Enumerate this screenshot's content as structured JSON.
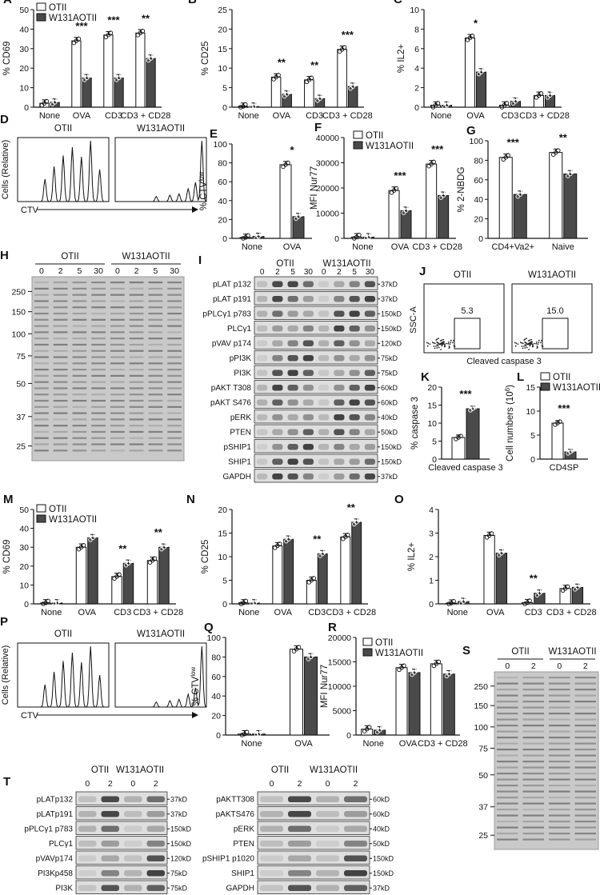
{
  "legend_wt": "OTII",
  "legend_mut": "W131AOTII",
  "conditions": [
    "None",
    "OVA",
    "CD3",
    "CD3 + CD28"
  ],
  "panels": {
    "A": {
      "label": "A",
      "ylabel": "% CD69",
      "ylim": [
        0,
        50
      ],
      "yticks": [
        0,
        10,
        20,
        30,
        40,
        50
      ],
      "stars": [
        "",
        "***",
        "***",
        "**"
      ]
    },
    "B": {
      "label": "B",
      "ylabel": "% CD25",
      "ylim": [
        0,
        25
      ],
      "yticks": [
        0,
        5,
        10,
        15,
        20,
        25
      ],
      "stars": [
        "",
        "**",
        "**",
        "***"
      ]
    },
    "C": {
      "label": "C",
      "ylabel": "% IL2+",
      "ylim": [
        0,
        10
      ],
      "yticks": [
        0,
        2,
        4,
        6,
        8,
        10
      ],
      "stars": [
        "",
        "*",
        "",
        ""
      ]
    },
    "D": {
      "label": "D",
      "col1": "OTII",
      "col2": "W131AOTII",
      "ylabel": "Cells (Relative)",
      "xlabel": "CTV"
    },
    "E": {
      "label": "E",
      "ylabel": "% CTV",
      "ylabel_sup": "low",
      "ylim": [
        0,
        100
      ],
      "yticks": [
        0,
        20,
        40,
        60,
        80,
        100
      ],
      "categories": [
        "None",
        "OVA"
      ],
      "stars": [
        "",
        "*"
      ]
    },
    "F": {
      "label": "F",
      "ylabel": "MFI Nur77",
      "ylim": [
        0,
        40000
      ],
      "yticks": [
        0,
        10000,
        20000,
        30000,
        40000
      ],
      "categories": [
        "None",
        "OVA",
        "CD3 + CD28"
      ],
      "stars": [
        "",
        "***",
        "***"
      ]
    },
    "G": {
      "label": "G",
      "ylabel": "% 2-NBDG",
      "ylim": [
        0,
        100
      ],
      "yticks": [
        0,
        20,
        40,
        60,
        80,
        100
      ],
      "categories": [
        "CD4+Va2+",
        "Naive"
      ],
      "stars": [
        "***",
        "**"
      ]
    },
    "H": {
      "label": "H",
      "group1": "OTII",
      "group2": "W131AOTII",
      "lanes": [
        "0",
        "2",
        "5",
        "30",
        "0",
        "2",
        "5",
        "30"
      ],
      "mw": [
        "250",
        "150",
        "100",
        "75",
        "50",
        "37",
        "25"
      ]
    },
    "I": {
      "label": "I",
      "group1": "OTII",
      "group2": "W131AOTII",
      "lanes": [
        "0",
        "2",
        "5",
        "30",
        "0",
        "2",
        "5",
        "30"
      ],
      "rows": [
        {
          "name": "pLAT p132",
          "mw": "37kD"
        },
        {
          "name": "pLAT p191",
          "mw": "37kD"
        },
        {
          "name": "pPLCγ1 p783",
          "mw": "150kD"
        },
        {
          "name": "PLCγ1",
          "mw": "150kD"
        },
        {
          "name": "pVAV p174",
          "mw": "120kD"
        },
        {
          "name": "pPI3K",
          "mw": "75kD"
        },
        {
          "name": "PI3K",
          "mw": "75kD"
        },
        {
          "name": "pAKT T308",
          "mw": "60kD"
        },
        {
          "name": "pAKT S476",
          "mw": "60kD"
        },
        {
          "name": "pERK",
          "mw": "40kD"
        },
        {
          "name": "PTEN",
          "mw": "50kD"
        },
        {
          "name": "pSHIP1",
          "mw": "150kD"
        },
        {
          "name": "SHIP1",
          "mw": "150kD"
        },
        {
          "name": "GAPDH",
          "mw": "37kD"
        }
      ]
    },
    "J": {
      "label": "J",
      "col1": "OTII",
      "col2": "W131AOTII",
      "ylabel": "SSC-A",
      "xlabel": "Cleaved caspase 3",
      "gate1": "5.3",
      "gate2": "15.0"
    },
    "K": {
      "label": "K",
      "ylabel": "% caspase 3",
      "ylim": [
        0,
        20
      ],
      "yticks": [
        0,
        5,
        10,
        15,
        20
      ],
      "categories": [
        "Cleaved caspase 3"
      ],
      "stars": [
        "***"
      ]
    },
    "L": {
      "label": "L",
      "ylabel": "Cell numbers (10",
      "ylabel_sup": "6",
      "ylabel_end": ")",
      "ylim": [
        0,
        15
      ],
      "yticks": [
        0,
        5,
        10,
        15
      ],
      "categories": [
        "CD4SP"
      ],
      "stars": [
        "***"
      ]
    },
    "M": {
      "label": "M",
      "ylabel": "% CD69",
      "ylim": [
        0,
        50
      ],
      "yticks": [
        0,
        10,
        20,
        30,
        40,
        50
      ],
      "stars": [
        "",
        "",
        "**",
        "**"
      ]
    },
    "N": {
      "label": "N",
      "ylabel": "% CD25",
      "ylim": [
        0,
        20
      ],
      "yticks": [
        0,
        5,
        10,
        15,
        20
      ],
      "stars": [
        "",
        "",
        "**",
        "**"
      ]
    },
    "O": {
      "label": "O",
      "ylabel": "% IL2+",
      "ylim": [
        0,
        4
      ],
      "yticks": [
        0,
        1,
        2,
        3,
        4
      ],
      "stars": [
        "",
        "",
        "**",
        ""
      ]
    },
    "P": {
      "label": "P",
      "col1": "OTII",
      "col2": "W131AOTII",
      "ylabel": "Cells (Relative)",
      "xlabel": "CTV"
    },
    "Q": {
      "label": "Q",
      "ylabel": "% CTV",
      "ylabel_sup": "low",
      "ylim": [
        0,
        100
      ],
      "yticks": [
        0,
        20,
        40,
        60,
        80,
        100
      ],
      "categories": [
        "None",
        "OVA"
      ],
      "stars": [
        "",
        ""
      ]
    },
    "R": {
      "label": "R",
      "ylabel": "MFI Nur77",
      "ylim": [
        0,
        20000
      ],
      "yticks": [
        0,
        5000,
        10000,
        15000,
        20000
      ],
      "categories": [
        "None",
        "OVA",
        "CD3 + CD28"
      ],
      "stars": [
        "",
        "",
        ""
      ]
    },
    "S": {
      "label": "S",
      "group1": "OTII",
      "group2": "W131AOTII",
      "lanes": [
        "0",
        "2",
        "0",
        "2"
      ],
      "mw": [
        "250",
        "150",
        "100",
        "75",
        "50",
        "37",
        "25"
      ]
    },
    "T": {
      "label": "T",
      "group1": "OTII",
      "group2": "W131AOTII",
      "lanes": [
        "0",
        "2",
        "0",
        "2"
      ],
      "left_rows": [
        {
          "name": "pLATp132",
          "mw": "37kD"
        },
        {
          "name": "pLATp191",
          "mw": "37kD"
        },
        {
          "name": "pPLCγ1 p783",
          "mw": "150kD"
        },
        {
          "name": "PLCγ1",
          "mw": "150kD"
        },
        {
          "name": "pVAVp174",
          "mw": "120kD"
        },
        {
          "name": "PI3Kp458",
          "mw": "75kD"
        },
        {
          "name": "PI3K",
          "mw": "75kD"
        }
      ],
      "right_rows": [
        {
          "name": "pAKTT308",
          "mw": "60kD"
        },
        {
          "name": "pAKTS476",
          "mw": "60kD"
        },
        {
          "name": "pERK",
          "mw": "40kD"
        },
        {
          "name": "PTEN",
          "mw": "50kD"
        },
        {
          "name": "pSHIP1 p1020",
          "mw": "150kD"
        },
        {
          "name": "SHIP1",
          "mw": "150kD"
        },
        {
          "name": "GAPDH",
          "mw": "37kD"
        }
      ]
    }
  },
  "chart_data": [
    {
      "id": "A",
      "type": "bar",
      "categories": [
        "None",
        "OVA",
        "CD3",
        "CD3 + CD28"
      ],
      "series": [
        {
          "name": "OTII",
          "values": [
            2,
            34,
            37,
            38
          ]
        },
        {
          "name": "W131AOTII",
          "values": [
            2.5,
            15,
            15,
            25
          ]
        }
      ],
      "ylabel": "% CD69",
      "ylim": [
        0,
        50
      ]
    },
    {
      "id": "B",
      "type": "bar",
      "categories": [
        "None",
        "OVA",
        "CD3",
        "CD3 + CD28"
      ],
      "series": [
        {
          "name": "OTII",
          "values": [
            0.2,
            7.7,
            7.0,
            14.8
          ]
        },
        {
          "name": "W131AOTII",
          "values": [
            0.2,
            3.3,
            2.2,
            5.3
          ]
        }
      ],
      "ylabel": "% CD25",
      "ylim": [
        0,
        25
      ]
    },
    {
      "id": "C",
      "type": "bar",
      "categories": [
        "None",
        "OVA",
        "CD3",
        "CD3 + CD28"
      ],
      "series": [
        {
          "name": "OTII",
          "values": [
            0.2,
            7.1,
            0.2,
            1.2
          ]
        },
        {
          "name": "W131AOTII",
          "values": [
            0.2,
            3.6,
            0.6,
            1.2
          ]
        }
      ],
      "ylabel": "% IL2+",
      "ylim": [
        0,
        10
      ]
    },
    {
      "id": "E",
      "type": "bar",
      "categories": [
        "None",
        "OVA"
      ],
      "series": [
        {
          "name": "OTII",
          "values": [
            1,
            78
          ]
        },
        {
          "name": "W131AOTII",
          "values": [
            2,
            23
          ]
        }
      ],
      "ylabel": "% CTVlow",
      "ylim": [
        0,
        100
      ]
    },
    {
      "id": "F",
      "type": "bar",
      "categories": [
        "None",
        "OVA",
        "CD3 + CD28"
      ],
      "series": [
        {
          "name": "OTII",
          "values": [
            500,
            19000,
            29500
          ]
        },
        {
          "name": "W131AOTII",
          "values": [
            500,
            11000,
            17000
          ]
        }
      ],
      "ylabel": "MFI Nur77",
      "ylim": [
        0,
        40000
      ]
    },
    {
      "id": "G",
      "type": "bar",
      "categories": [
        "CD4+Va2+",
        "Naive"
      ],
      "series": [
        {
          "name": "OTII",
          "values": [
            83,
            88
          ]
        },
        {
          "name": "W131AOTII",
          "values": [
            45,
            66
          ]
        }
      ],
      "ylabel": "% 2-NBDG",
      "ylim": [
        0,
        100
      ]
    },
    {
      "id": "K",
      "type": "bar",
      "categories": [
        "Cleaved caspase 3"
      ],
      "series": [
        {
          "name": "OTII",
          "values": [
            6
          ]
        },
        {
          "name": "W131AOTII",
          "values": [
            14
          ]
        }
      ],
      "ylabel": "% caspase 3",
      "ylim": [
        0,
        20
      ]
    },
    {
      "id": "L",
      "type": "bar",
      "categories": [
        "CD4SP"
      ],
      "series": [
        {
          "name": "OTII",
          "values": [
            7.5
          ]
        },
        {
          "name": "W131AOTII",
          "values": [
            1.5
          ]
        }
      ],
      "ylabel": "Cell numbers (10^6)",
      "ylim": [
        0,
        15
      ]
    },
    {
      "id": "M",
      "type": "bar",
      "categories": [
        "None",
        "OVA",
        "CD3",
        "CD3 + CD28"
      ],
      "series": [
        {
          "name": "OTII",
          "values": [
            0.5,
            30,
            14.5,
            23
          ]
        },
        {
          "name": "W131AOTII",
          "values": [
            0.5,
            35,
            21.5,
            30
          ]
        }
      ],
      "ylabel": "% CD69",
      "ylim": [
        0,
        50
      ]
    },
    {
      "id": "N",
      "type": "bar",
      "categories": [
        "None",
        "OVA",
        "CD3",
        "CD3 + CD28"
      ],
      "series": [
        {
          "name": "OTII",
          "values": [
            0.2,
            12.3,
            5,
            14.2
          ]
        },
        {
          "name": "W131AOTII",
          "values": [
            0.2,
            13.7,
            10.6,
            17.3
          ]
        }
      ],
      "ylabel": "% CD25",
      "ylim": [
        0,
        20
      ]
    },
    {
      "id": "O",
      "type": "bar",
      "categories": [
        "None",
        "OVA",
        "CD3",
        "CD3 + CD28"
      ],
      "series": [
        {
          "name": "OTII",
          "values": [
            0.03,
            2.9,
            0.05,
            0.65
          ]
        },
        {
          "name": "W131AOTII",
          "values": [
            0.1,
            2.15,
            0.45,
            0.7
          ]
        }
      ],
      "ylabel": "% IL2+",
      "ylim": [
        0,
        4
      ]
    },
    {
      "id": "Q",
      "type": "bar",
      "categories": [
        "None",
        "OVA"
      ],
      "series": [
        {
          "name": "OTII",
          "values": [
            1,
            88
          ]
        },
        {
          "name": "W131AOTII",
          "values": [
            1,
            80
          ]
        }
      ],
      "ylabel": "% CTVlow",
      "ylim": [
        0,
        100
      ]
    },
    {
      "id": "R",
      "type": "bar",
      "categories": [
        "None",
        "OVA",
        "CD3 + CD28"
      ],
      "series": [
        {
          "name": "OTII",
          "values": [
            1200,
            13800,
            14600
          ]
        },
        {
          "name": "W131AOTII",
          "values": [
            1000,
            12800,
            12500
          ]
        }
      ],
      "ylabel": "MFI Nur77",
      "ylim": [
        0,
        20000
      ]
    }
  ]
}
